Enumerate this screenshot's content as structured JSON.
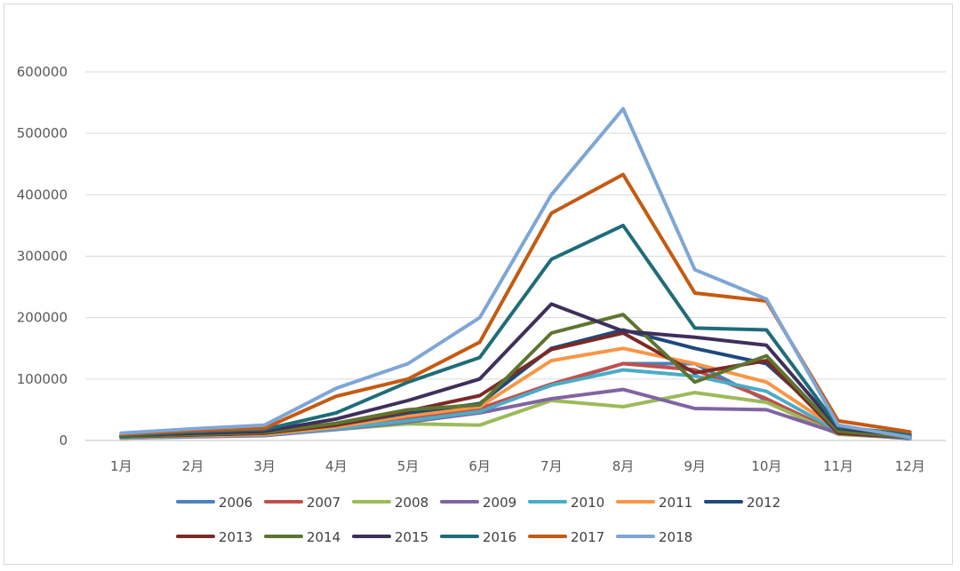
{
  "chart_data": {
    "type": "line",
    "title": "",
    "xlabel": "",
    "ylabel": "",
    "categories": [
      "1月",
      "2月",
      "3月",
      "4月",
      "5月",
      "6月",
      "7月",
      "8月",
      "9月",
      "10月",
      "11月",
      "12月"
    ],
    "ylim": [
      0,
      600000
    ],
    "yticks": [
      "0",
      "100000",
      "200000",
      "300000",
      "400000",
      "500000",
      "600000"
    ],
    "grid": "horizontal",
    "legend_position": "bottom",
    "series": [
      {
        "name": "2006",
        "color": "#4e81bd",
        "values": [
          5000,
          7000,
          10000,
          20000,
          35000,
          50000,
          90000,
          125000,
          125000,
          65000,
          12000,
          5000
        ]
      },
      {
        "name": "2007",
        "color": "#c0504d",
        "values": [
          5000,
          8000,
          10000,
          20000,
          38000,
          52000,
          92000,
          125000,
          115000,
          68000,
          12000,
          4000
        ]
      },
      {
        "name": "2008",
        "color": "#9bbb59",
        "values": [
          4000,
          7000,
          9000,
          18000,
          27000,
          25000,
          65000,
          55000,
          78000,
          62000,
          10000,
          4000
        ]
      },
      {
        "name": "2009",
        "color": "#8064a2",
        "values": [
          4000,
          6000,
          8000,
          18000,
          30000,
          45000,
          68000,
          83000,
          52000,
          50000,
          12000,
          3000
        ]
      },
      {
        "name": "2010",
        "color": "#4bacc6",
        "values": [
          4000,
          7000,
          9000,
          19000,
          32000,
          47000,
          90000,
          115000,
          105000,
          80000,
          15000,
          4000
        ]
      },
      {
        "name": "2011",
        "color": "#f79646",
        "values": [
          5000,
          8000,
          10000,
          22000,
          40000,
          55000,
          130000,
          150000,
          125000,
          95000,
          18000,
          5000
        ]
      },
      {
        "name": "2012",
        "color": "#1f497d",
        "values": [
          6000,
          9000,
          12000,
          25000,
          45000,
          60000,
          150000,
          180000,
          150000,
          125000,
          20000,
          5000
        ]
      },
      {
        "name": "2013",
        "color": "#7b2a25",
        "values": [
          6000,
          9000,
          12000,
          25000,
          48000,
          73000,
          148000,
          175000,
          110000,
          130000,
          12000,
          5000
        ]
      },
      {
        "name": "2014",
        "color": "#5e7530",
        "values": [
          6000,
          10000,
          13000,
          28000,
          50000,
          58000,
          175000,
          205000,
          95000,
          138000,
          15000,
          5000
        ]
      },
      {
        "name": "2015",
        "color": "#3f2f5b",
        "values": [
          8000,
          12000,
          15000,
          35000,
          65000,
          100000,
          222000,
          178000,
          168000,
          155000,
          20000,
          8000
        ]
      },
      {
        "name": "2016",
        "color": "#1e6d78",
        "values": [
          8000,
          14000,
          18000,
          45000,
          95000,
          135000,
          295000,
          350000,
          183000,
          180000,
          22000,
          10000
        ]
      },
      {
        "name": "2017",
        "color": "#c55a11",
        "values": [
          10000,
          16000,
          20000,
          72000,
          100000,
          160000,
          370000,
          433000,
          240000,
          227000,
          32000,
          14000
        ]
      },
      {
        "name": "2018",
        "color": "#7ea6d6",
        "values": [
          12000,
          19000,
          25000,
          85000,
          125000,
          200000,
          400000,
          540000,
          278000,
          230000,
          25000,
          5000
        ]
      }
    ]
  }
}
